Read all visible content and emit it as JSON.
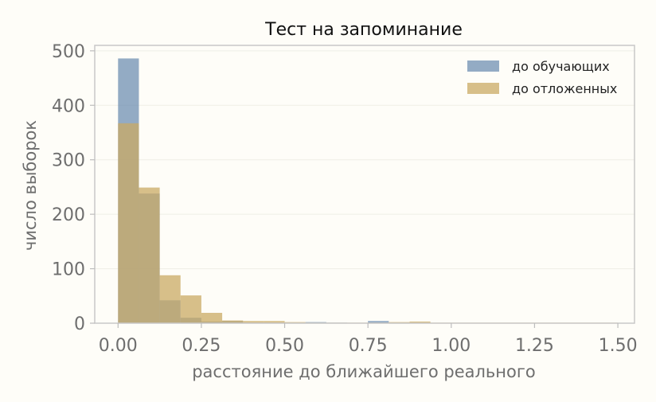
{
  "chart_data": {
    "type": "bar",
    "title": "Тест на запоминание",
    "xlabel": "расстояние до ближайшего реального",
    "ylabel": "число выборок",
    "xlim": [
      -0.07,
      1.55
    ],
    "ylim": [
      0,
      510
    ],
    "xticks": [
      0.0,
      0.25,
      0.5,
      0.75,
      1.0,
      1.25,
      1.5
    ],
    "xtick_labels": [
      "0.00",
      "0.25",
      "0.50",
      "0.75",
      "1.00",
      "1.25",
      "1.50"
    ],
    "yticks": [
      0,
      100,
      200,
      300,
      400,
      500
    ],
    "ytick_labels": [
      "0",
      "100",
      "200",
      "300",
      "400",
      "500"
    ],
    "grid": true,
    "legend_position": "top-right",
    "series": [
      {
        "name": "до обучающих",
        "color": "#6f8fb3",
        "bins": [
          {
            "x0": 0.0,
            "x1": 0.0625,
            "count": 486
          },
          {
            "x0": 0.0625,
            "x1": 0.125,
            "count": 238
          },
          {
            "x0": 0.125,
            "x1": 0.1875,
            "count": 42
          },
          {
            "x0": 0.1875,
            "x1": 0.25,
            "count": 10
          },
          {
            "x0": 0.25,
            "x1": 0.3125,
            "count": 3
          },
          {
            "x0": 0.3125,
            "x1": 0.375,
            "count": 4
          },
          {
            "x0": 0.375,
            "x1": 0.4375,
            "count": 1
          },
          {
            "x0": 0.4375,
            "x1": 0.5,
            "count": 1
          },
          {
            "x0": 0.5,
            "x1": 0.5625,
            "count": 1
          },
          {
            "x0": 0.5625,
            "x1": 0.625,
            "count": 2
          },
          {
            "x0": 0.625,
            "x1": 0.6875,
            "count": 1
          },
          {
            "x0": 0.6875,
            "x1": 0.75,
            "count": 0
          },
          {
            "x0": 0.75,
            "x1": 0.8125,
            "count": 4
          },
          {
            "x0": 0.8125,
            "x1": 0.875,
            "count": 1
          }
        ]
      },
      {
        "name": "до отложенных",
        "color": "#c9a964",
        "bins": [
          {
            "x0": 0.0,
            "x1": 0.0625,
            "count": 367
          },
          {
            "x0": 0.0625,
            "x1": 0.125,
            "count": 249
          },
          {
            "x0": 0.125,
            "x1": 0.1875,
            "count": 88
          },
          {
            "x0": 0.1875,
            "x1": 0.25,
            "count": 51
          },
          {
            "x0": 0.25,
            "x1": 0.3125,
            "count": 19
          },
          {
            "x0": 0.3125,
            "x1": 0.375,
            "count": 5
          },
          {
            "x0": 0.375,
            "x1": 0.4375,
            "count": 4
          },
          {
            "x0": 0.4375,
            "x1": 0.5,
            "count": 4
          },
          {
            "x0": 0.5,
            "x1": 0.5625,
            "count": 2
          },
          {
            "x0": 0.5625,
            "x1": 0.625,
            "count": 1
          },
          {
            "x0": 0.625,
            "x1": 0.6875,
            "count": 1
          },
          {
            "x0": 0.6875,
            "x1": 0.75,
            "count": 1
          },
          {
            "x0": 0.75,
            "x1": 0.8125,
            "count": 1
          },
          {
            "x0": 0.8125,
            "x1": 0.875,
            "count": 2
          },
          {
            "x0": 0.875,
            "x1": 0.9375,
            "count": 3
          },
          {
            "x0": 0.9375,
            "x1": 1.0,
            "count": 1
          },
          {
            "x0": 1.0,
            "x1": 1.0625,
            "count": 1
          },
          {
            "x0": 1.0625,
            "x1": 1.125,
            "count": 1
          },
          {
            "x0": 1.125,
            "x1": 1.1875,
            "count": 1
          },
          {
            "x0": 1.1875,
            "x1": 1.25,
            "count": 1
          },
          {
            "x0": 1.25,
            "x1": 1.3125,
            "count": 1
          },
          {
            "x0": 1.3125,
            "x1": 1.375,
            "count": 1
          },
          {
            "x0": 1.375,
            "x1": 1.4375,
            "count": 1
          },
          {
            "x0": 1.4375,
            "x1": 1.5,
            "count": 1
          }
        ]
      }
    ]
  }
}
